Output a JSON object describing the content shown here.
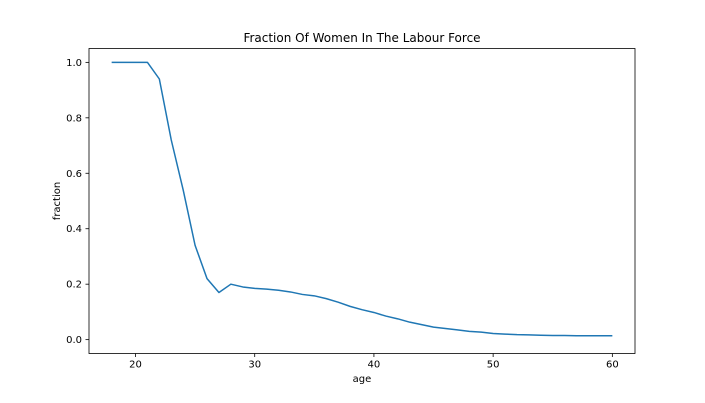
{
  "chart_data": {
    "type": "line",
    "title": "Fraction Of Women In The Labour Force",
    "xlabel": "age",
    "ylabel": "fraction",
    "xlim": [
      16.1,
      61.9
    ],
    "ylim": [
      -0.05,
      1.05
    ],
    "xticks": [
      20,
      30,
      40,
      50,
      60
    ],
    "yticks": [
      0.0,
      0.2,
      0.4,
      0.6,
      0.8,
      1.0
    ],
    "xtick_labels": [
      "20",
      "30",
      "40",
      "50",
      "60"
    ],
    "ytick_labels": [
      "0.0",
      "0.2",
      "0.4",
      "0.6",
      "0.8",
      "1.0"
    ],
    "grid": false,
    "legend": false,
    "color": "#1f77b4",
    "series": [
      {
        "x": [
          18,
          19,
          20,
          21,
          22,
          23,
          24,
          25,
          26,
          27,
          28,
          29,
          30,
          31,
          32,
          33,
          34,
          35,
          36,
          37,
          38,
          39,
          40,
          41,
          42,
          43,
          44,
          45,
          46,
          47,
          48,
          49,
          50,
          51,
          52,
          53,
          54,
          55,
          56,
          57,
          58,
          59,
          60
        ],
        "values": [
          1.0,
          1.0,
          1.0,
          1.0,
          0.94,
          0.72,
          0.54,
          0.34,
          0.22,
          0.17,
          0.2,
          0.19,
          0.185,
          0.182,
          0.178,
          0.172,
          0.163,
          0.158,
          0.148,
          0.135,
          0.12,
          0.108,
          0.098,
          0.085,
          0.075,
          0.063,
          0.054,
          0.045,
          0.04,
          0.035,
          0.03,
          0.027,
          0.022,
          0.02,
          0.018,
          0.017,
          0.016,
          0.015,
          0.015,
          0.014,
          0.014,
          0.014,
          0.014
        ]
      }
    ]
  }
}
